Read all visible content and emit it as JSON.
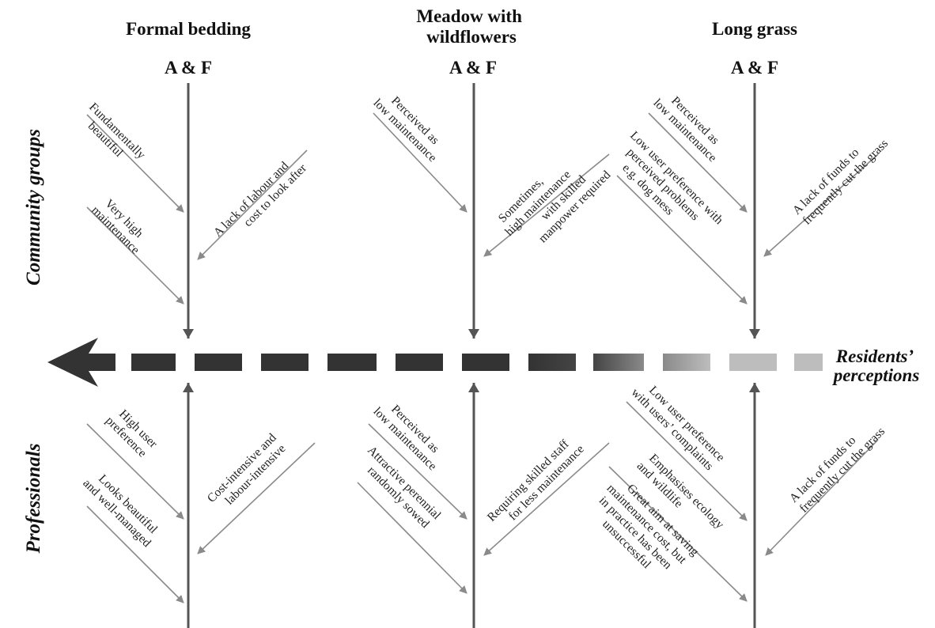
{
  "columns": [
    {
      "title_lines": [
        "Formal bedding"
      ],
      "af_label": "A & F"
    },
    {
      "title_lines": [
        "Meadow with",
        "wildflowers"
      ],
      "af_label": "A & F"
    },
    {
      "title_lines": [
        "Long grass"
      ],
      "af_label": "A & F"
    }
  ],
  "rows": {
    "community": "Community groups",
    "professionals": "Professionals"
  },
  "axis": {
    "label_lines": [
      "Residents’",
      "perceptions"
    ],
    "gradient": [
      "#333333",
      "#444444",
      "#8a8a8a",
      "#bdbdbd"
    ]
  },
  "causes": {
    "formal_community_1": [
      "Fundamentally",
      "beautiful"
    ],
    "formal_community_2": [
      "Very high",
      "maintenance"
    ],
    "formal_community_3": [
      "A lack of labour and",
      "cost to look after"
    ],
    "meadow_community_1": [
      "Perceived as",
      "low maintenance"
    ],
    "meadow_community_2": [
      "Sometimes,",
      "high maintenance",
      "with skilled",
      "manpower required"
    ],
    "long_community_1": [
      "Perceived as",
      "low maintenance"
    ],
    "long_community_2": [
      "Low user preference with",
      "perceived problems",
      "e.g. dog mess"
    ],
    "long_community_3": [
      "A lack of funds to",
      "frequently cut the grass"
    ],
    "formal_prof_1": [
      "High user",
      "preference"
    ],
    "formal_prof_2": [
      "Looks beautiful",
      "and well-managed"
    ],
    "formal_prof_3": [
      "Cost-intensive and",
      "labour-intensive"
    ],
    "meadow_prof_1": [
      "Perceived as",
      "low maintenance"
    ],
    "meadow_prof_2": [
      "Attractive perennial",
      "randomly sowed"
    ],
    "meadow_prof_3": [
      "Requiring skilled staff",
      "for less maintenance"
    ],
    "long_prof_1": [
      "Low user preference",
      "with users’ complaints"
    ],
    "long_prof_2": [
      "Emphasises ecology",
      "and wildlife"
    ],
    "long_prof_3": [
      "Great aim at saving",
      "maintenance cost, but",
      "in practice has been",
      "unsuccessful"
    ],
    "long_prof_4": [
      "A lack of funds to",
      "frequently cut the grass"
    ]
  }
}
